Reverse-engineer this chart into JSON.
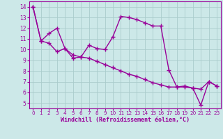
{
  "line1_x": [
    0,
    1,
    2,
    3,
    4,
    5,
    6,
    7,
    8,
    9,
    10,
    11,
    12,
    13,
    14,
    15,
    16,
    17,
    18,
    19,
    20,
    21,
    22,
    23
  ],
  "line1_y": [
    14.0,
    10.8,
    10.6,
    9.8,
    10.1,
    9.2,
    9.3,
    10.4,
    10.1,
    10.0,
    11.2,
    13.1,
    13.0,
    12.8,
    12.5,
    12.2,
    12.2,
    8.1,
    6.5,
    6.6,
    6.4,
    4.8,
    7.0,
    6.6
  ],
  "line2_x": [
    0,
    1,
    2,
    3,
    4,
    5,
    6,
    7,
    8,
    9,
    10,
    11,
    12,
    13,
    14,
    15,
    16,
    17,
    18,
    19,
    20,
    21,
    22,
    23
  ],
  "line2_y": [
    14.0,
    10.8,
    11.5,
    12.0,
    10.1,
    9.5,
    9.3,
    9.2,
    8.9,
    8.6,
    8.3,
    8.0,
    7.7,
    7.5,
    7.2,
    6.9,
    6.7,
    6.5,
    6.5,
    6.5,
    6.4,
    6.3,
    7.0,
    6.6
  ],
  "color": "#990099",
  "bg_color": "#cce8e8",
  "grid_color": "#aacccc",
  "xlabel": "Windchill (Refroidissement éolien,°C)",
  "xlim": [
    -0.5,
    23.5
  ],
  "ylim": [
    4.5,
    14.5
  ],
  "yticks": [
    5,
    6,
    7,
    8,
    9,
    10,
    11,
    12,
    13,
    14
  ],
  "xticks": [
    0,
    1,
    2,
    3,
    4,
    5,
    6,
    7,
    8,
    9,
    10,
    11,
    12,
    13,
    14,
    15,
    16,
    17,
    18,
    19,
    20,
    21,
    22,
    23
  ],
  "marker": "+",
  "markersize": 4,
  "linewidth": 1.0
}
